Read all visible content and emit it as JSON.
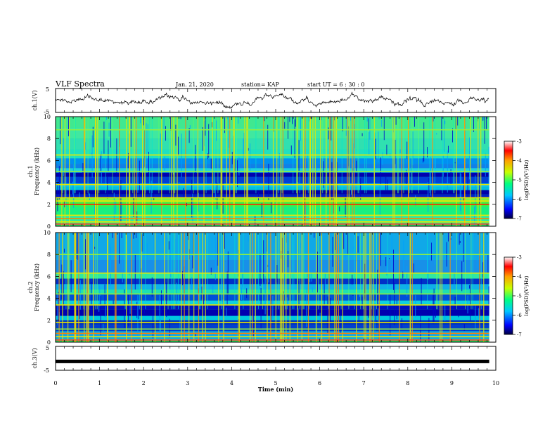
{
  "header": {
    "title": "VLF Spectra",
    "date": "Jan. 21, 2020",
    "station": "station= KAP",
    "start": "start UT =  6 : 30 : 0"
  },
  "chart_data": [
    {
      "type": "line",
      "name": "ch1-waveform",
      "ylabel": "ch.1(V)",
      "ylim": [
        -5,
        5
      ],
      "yticks": [
        "5",
        "-5"
      ],
      "xlim": [
        0,
        10
      ]
    },
    {
      "type": "heatmap",
      "name": "ch1-spectrogram",
      "ylabel": "ch.1\nFrequency (kHz)",
      "ylabel_line1": "ch.1",
      "ylabel_line2": "Frequency (kHz)",
      "ylim": [
        0,
        10
      ],
      "yticks": [
        "0",
        "2",
        "4",
        "6",
        "8",
        "10"
      ],
      "xlim": [
        0,
        9.85
      ],
      "colorbar": {
        "label": "log(PSD)(V²/Hz)",
        "range": [
          -7,
          -3
        ],
        "ticks": [
          "-3",
          "-4",
          "-5",
          "-6",
          "-7"
        ]
      }
    },
    {
      "type": "heatmap",
      "name": "ch2-spectrogram",
      "ylabel": "ch.2\nFrequency (kHz)",
      "ylabel_line1": "ch.2",
      "ylabel_line2": "Frequency (kHz)",
      "ylim": [
        0,
        10
      ],
      "yticks": [
        "0",
        "2",
        "4",
        "6",
        "8",
        "10"
      ],
      "xlim": [
        0,
        9.85
      ],
      "colorbar": {
        "label": "log(PSD)(V²/Hz)",
        "range": [
          -7,
          -3
        ],
        "ticks": [
          "-3",
          "-4",
          "-5",
          "-6",
          "-7"
        ]
      }
    },
    {
      "type": "line",
      "name": "ch3-waveform",
      "ylabel": "ch.3(V)",
      "ylim": [
        -5,
        5
      ],
      "yticks": [
        "5",
        "-5"
      ],
      "xlim": [
        0,
        10
      ],
      "level": -1.3
    }
  ],
  "xaxis": {
    "label": "Time (min)",
    "ticks": [
      "0",
      "1",
      "2",
      "3",
      "4",
      "5",
      "6",
      "7",
      "8",
      "9",
      "10"
    ]
  },
  "colors": {
    "low": "#0000c8",
    "mid": "#00e8d0",
    "high": "#e8e800",
    "peak": "#e00000"
  }
}
